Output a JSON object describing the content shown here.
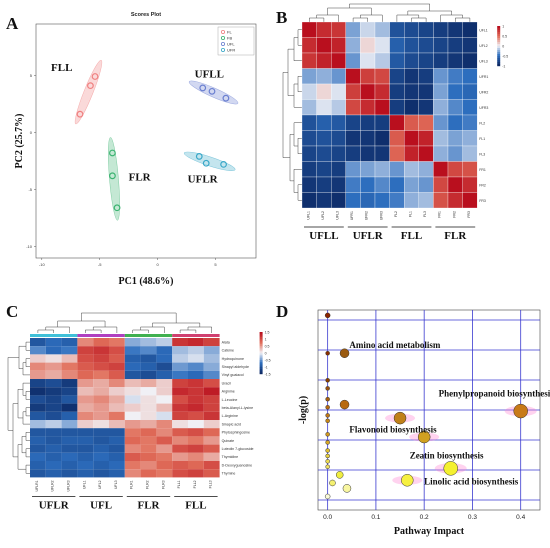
{
  "panels": {
    "a": "A",
    "b": "B",
    "c": "C",
    "d": "D"
  },
  "chart_data": [
    {
      "type": "scatter",
      "title": "Scores Plot",
      "xlabel": "PC1 (48.6%)",
      "ylabel": "PC2 (25.7%)",
      "xlim": [
        -10.5,
        8.5
      ],
      "ylim": [
        -11,
        9.5
      ],
      "xticks": [
        -10,
        -5,
        0,
        5
      ],
      "yticks": [
        -10,
        -5,
        0,
        5
      ],
      "legend": {
        "position": "top-right",
        "entries": [
          "FL",
          "FB",
          "UFL",
          "UFR"
        ]
      },
      "series": [
        {
          "name": "FLL",
          "color": "#f08080",
          "points": [
            [
              -6.7,
              1.6
            ],
            [
              -5.8,
              4.1
            ],
            [
              -5.4,
              4.9
            ]
          ]
        },
        {
          "name": "FLR",
          "color": "#3cb371",
          "points": [
            [
              -3.9,
              -1.8
            ],
            [
              -3.9,
              -3.8
            ],
            [
              -3.5,
              -6.6
            ]
          ]
        },
        {
          "name": "UFLL",
          "color": "#6a7fd0",
          "points": [
            [
              3.9,
              3.9
            ],
            [
              4.7,
              3.6
            ],
            [
              5.9,
              3.0
            ]
          ]
        },
        {
          "name": "UFLR",
          "color": "#3aa8c8",
          "points": [
            [
              3.6,
              -2.1
            ],
            [
              4.2,
              -2.7
            ],
            [
              5.7,
              -2.8
            ]
          ]
        }
      ],
      "group_labels": [
        "FLL",
        "FLR",
        "UFLL",
        "UFLR"
      ]
    },
    {
      "type": "heatmap",
      "groups": [
        "UFLL",
        "UFLR",
        "FLL",
        "FLR"
      ],
      "row_labels": [
        "UFL1",
        "UFL2",
        "UFL3",
        "UFR1",
        "UFR2",
        "UFR3",
        "FL2",
        "FL1",
        "FL3",
        "FR1",
        "FR2",
        "FR3"
      ],
      "col_labels": [
        "UFL1",
        "UFL2",
        "UFL3",
        "UFR1",
        "UFR2",
        "UFR3",
        "FL2",
        "FL1",
        "FL3",
        "FR1",
        "FR2",
        "FR3"
      ],
      "scale": {
        "min": -1,
        "max": 1,
        "ticks": [
          "1",
          "0.5",
          "0",
          "-0.5",
          "-1"
        ]
      },
      "values": [
        [
          1.0,
          0.85,
          0.8,
          -0.3,
          -0.1,
          -0.2,
          -0.7,
          -0.75,
          -0.8,
          -0.85,
          -0.9,
          -0.95
        ],
        [
          0.85,
          1.0,
          0.9,
          -0.25,
          0.1,
          -0.05,
          -0.6,
          -0.7,
          -0.75,
          -0.8,
          -0.85,
          -0.9
        ],
        [
          0.8,
          0.9,
          1.0,
          -0.35,
          -0.05,
          -0.15,
          -0.65,
          -0.75,
          -0.8,
          -0.85,
          -0.9,
          -0.95
        ],
        [
          -0.3,
          -0.25,
          -0.35,
          1.0,
          0.75,
          0.7,
          -0.8,
          -0.9,
          -0.85,
          -0.35,
          -0.45,
          -0.5
        ],
        [
          -0.1,
          0.1,
          -0.05,
          0.75,
          1.0,
          0.85,
          -0.85,
          -0.9,
          -0.9,
          -0.3,
          -0.5,
          -0.55
        ],
        [
          -0.2,
          -0.05,
          -0.15,
          0.7,
          0.85,
          1.0,
          -0.85,
          -0.95,
          -0.9,
          -0.25,
          -0.4,
          -0.5
        ],
        [
          -0.7,
          -0.6,
          -0.65,
          -0.8,
          -0.85,
          -0.85,
          1.0,
          0.6,
          0.55,
          -0.35,
          -0.5,
          -0.45
        ],
        [
          -0.75,
          -0.7,
          -0.75,
          -0.9,
          -0.9,
          -0.95,
          0.6,
          1.0,
          0.9,
          -0.2,
          -0.3,
          -0.25
        ],
        [
          -0.8,
          -0.75,
          -0.8,
          -0.85,
          -0.9,
          -0.9,
          0.55,
          0.9,
          1.0,
          -0.25,
          -0.35,
          -0.2
        ],
        [
          -0.85,
          -0.8,
          -0.85,
          -0.35,
          -0.3,
          -0.25,
          -0.35,
          -0.2,
          -0.25,
          1.0,
          0.7,
          0.65
        ],
        [
          -0.9,
          -0.85,
          -0.9,
          -0.45,
          -0.5,
          -0.4,
          -0.5,
          -0.3,
          -0.35,
          0.7,
          1.0,
          0.85
        ],
        [
          -0.95,
          -0.9,
          -0.95,
          -0.5,
          -0.55,
          -0.5,
          -0.45,
          -0.25,
          -0.2,
          0.65,
          0.85,
          1.0
        ]
      ]
    },
    {
      "type": "heatmap",
      "groups": [
        "UFLR",
        "UFL",
        "FLR",
        "FLL"
      ],
      "row_labels": [
        "Alata",
        "Cafeine",
        "Hydroquinone",
        "Sinapyl aldehyde",
        "Vinyl guaiacol",
        "Uracil",
        "Arginine",
        "L-Leucine",
        "beta-Alanyl-L-lysine",
        "L-Arginine",
        "Sinapic acid",
        "Phytosphingosine",
        "Quinate",
        "Luteolin 7-glucoside",
        "Thymidine",
        "D-Deoxyguanosine",
        "Thymine"
      ],
      "col_labels": [
        "UFLR1",
        "UFLR2",
        "UFLR3",
        "UFL1",
        "UFL2",
        "UFL3",
        "FLR1",
        "FLR2",
        "FLR3",
        "FLL1",
        "FLL2",
        "FLL3"
      ],
      "scale": {
        "min": -1.5,
        "max": 1.5,
        "ticks": [
          "1.5",
          "1",
          "0.5",
          "0",
          "-0.5",
          "-1",
          "-1.5"
        ]
      },
      "values": [
        [
          -1.0,
          -0.8,
          -0.9,
          0.6,
          0.8,
          0.7,
          -0.4,
          -0.3,
          -0.2,
          1.2,
          1.3,
          1.1
        ],
        [
          -0.6,
          -0.8,
          -0.7,
          1.1,
          1.2,
          1.0,
          -0.7,
          -0.6,
          -0.8,
          -0.3,
          -0.2,
          -0.4
        ],
        [
          0.2,
          0.1,
          0.3,
          1.0,
          1.1,
          0.9,
          -0.9,
          -1.0,
          -0.8,
          -0.2,
          -0.1,
          -0.3
        ],
        [
          0.6,
          0.5,
          0.7,
          0.9,
          1.0,
          1.1,
          -0.8,
          -0.9,
          -1.1,
          -0.5,
          -0.6,
          -0.4
        ],
        [
          0.5,
          0.4,
          0.6,
          0.8,
          0.7,
          0.9,
          -1.0,
          -1.1,
          -0.9,
          -0.7,
          -0.8,
          -0.6
        ],
        [
          -1.2,
          -1.1,
          -1.3,
          0.5,
          0.4,
          0.6,
          0.3,
          0.4,
          0.2,
          1.1,
          1.2,
          1.0
        ],
        [
          -1.4,
          -1.3,
          -1.2,
          0.3,
          0.4,
          0.2,
          0.1,
          0.0,
          0.2,
          1.3,
          1.2,
          1.4
        ],
        [
          -1.1,
          -1.2,
          -1.0,
          0.5,
          0.6,
          0.4,
          -0.1,
          0.1,
          0.0,
          1.0,
          1.2,
          1.1
        ],
        [
          -1.3,
          -1.2,
          -1.4,
          0.4,
          0.5,
          0.3,
          0.2,
          0.1,
          0.3,
          1.2,
          1.3,
          1.1
        ],
        [
          -1.0,
          -1.1,
          -0.9,
          0.6,
          0.5,
          0.7,
          0.0,
          0.1,
          -0.1,
          1.1,
          1.0,
          1.2
        ],
        [
          -0.3,
          -0.2,
          -0.4,
          0.2,
          0.1,
          0.3,
          0.5,
          0.4,
          0.6,
          0.1,
          0.0,
          0.2
        ],
        [
          -1.0,
          -1.0,
          -1.0,
          -1.0,
          -1.0,
          -1.0,
          0.7,
          0.8,
          0.6,
          0.9,
          1.0,
          0.8
        ],
        [
          -0.9,
          -1.0,
          -0.9,
          -0.9,
          -1.0,
          -0.9,
          0.8,
          0.7,
          0.9,
          0.6,
          0.7,
          0.5
        ],
        [
          -1.0,
          -0.9,
          -1.0,
          -1.0,
          -0.9,
          -1.0,
          0.6,
          0.7,
          0.5,
          1.0,
          1.1,
          0.9
        ],
        [
          -0.8,
          -0.9,
          -0.8,
          -0.9,
          -0.8,
          -0.9,
          0.9,
          0.8,
          0.7,
          0.5,
          0.6,
          0.4
        ],
        [
          -0.9,
          -0.8,
          -0.9,
          -0.8,
          -0.9,
          -0.8,
          0.7,
          0.6,
          0.8,
          0.9,
          0.8,
          1.0
        ],
        [
          -1.0,
          -0.9,
          -1.0,
          -0.9,
          -1.0,
          -0.9,
          0.6,
          0.8,
          0.7,
          1.0,
          1.1,
          0.9
        ]
      ]
    },
    {
      "type": "scatter",
      "xlabel": "Pathway Impact",
      "ylabel": "-log(p)",
      "xlim": [
        -0.02,
        0.44
      ],
      "ylim": [
        -0.05,
        3.65
      ],
      "xticks": [
        0.0,
        0.1,
        0.2,
        0.3,
        0.4
      ],
      "points": [
        {
          "x": 0.0,
          "y": 3.55,
          "r": 2.5,
          "color": "#8b2500"
        },
        {
          "x": 0.035,
          "y": 2.85,
          "r": 4.5,
          "color": "#9a5a10"
        },
        {
          "x": 0.0,
          "y": 2.85,
          "r": 2,
          "color": "#8b3000"
        },
        {
          "x": 0.0,
          "y": 2.35,
          "r": 2,
          "color": "#8b4000"
        },
        {
          "x": 0.0,
          "y": 2.2,
          "r": 2,
          "color": "#9a5010"
        },
        {
          "x": 0.0,
          "y": 2.0,
          "r": 2,
          "color": "#a86010"
        },
        {
          "x": 0.035,
          "y": 1.9,
          "r": 4.5,
          "color": "#b86a10"
        },
        {
          "x": 0.0,
          "y": 1.85,
          "r": 2,
          "color": "#b86a10"
        },
        {
          "x": 0.4,
          "y": 1.78,
          "r": 7,
          "color": "#c87a18"
        },
        {
          "x": 0.0,
          "y": 1.7,
          "r": 2,
          "color": "#c07818"
        },
        {
          "x": 0.15,
          "y": 1.65,
          "r": 6,
          "color": "#c08018"
        },
        {
          "x": 0.0,
          "y": 1.6,
          "r": 2,
          "color": "#c88818"
        },
        {
          "x": 0.0,
          "y": 1.35,
          "r": 2,
          "color": "#d09820"
        },
        {
          "x": 0.2,
          "y": 1.3,
          "r": 6,
          "color": "#d0a020"
        },
        {
          "x": 0.0,
          "y": 1.2,
          "r": 2,
          "color": "#d8a828"
        },
        {
          "x": 0.0,
          "y": 1.05,
          "r": 2,
          "color": "#e0c030"
        },
        {
          "x": 0.0,
          "y": 0.95,
          "r": 2,
          "color": "#e8d040"
        },
        {
          "x": 0.0,
          "y": 0.85,
          "r": 2,
          "color": "#eedd50"
        },
        {
          "x": 0.0,
          "y": 0.75,
          "r": 2,
          "color": "#f0e060"
        },
        {
          "x": 0.255,
          "y": 0.72,
          "r": 7,
          "color": "#f4f030"
        },
        {
          "x": 0.025,
          "y": 0.6,
          "r": 3.5,
          "color": "#f0ee40"
        },
        {
          "x": 0.165,
          "y": 0.5,
          "r": 6,
          "color": "#f6f040"
        },
        {
          "x": 0.01,
          "y": 0.45,
          "r": 3,
          "color": "#f4f070"
        },
        {
          "x": 0.04,
          "y": 0.35,
          "r": 4,
          "color": "#f8f6a0"
        },
        {
          "x": 0.0,
          "y": 0.2,
          "r": 2.5,
          "color": "#fafad8"
        }
      ],
      "annotations": [
        {
          "text": "Amino acid metabolism",
          "x": 0.045,
          "y": 2.95
        },
        {
          "text": "Phenylpropanoid biosynthesis",
          "x": 0.23,
          "y": 2.05
        },
        {
          "text": "Flavonoid biosynthesis",
          "x": 0.045,
          "y": 1.38
        },
        {
          "text": "Zeatin biosynthesis",
          "x": 0.17,
          "y": 0.9
        },
        {
          "text": "Linolic acid biosynthesis",
          "x": 0.2,
          "y": 0.42
        }
      ]
    }
  ]
}
